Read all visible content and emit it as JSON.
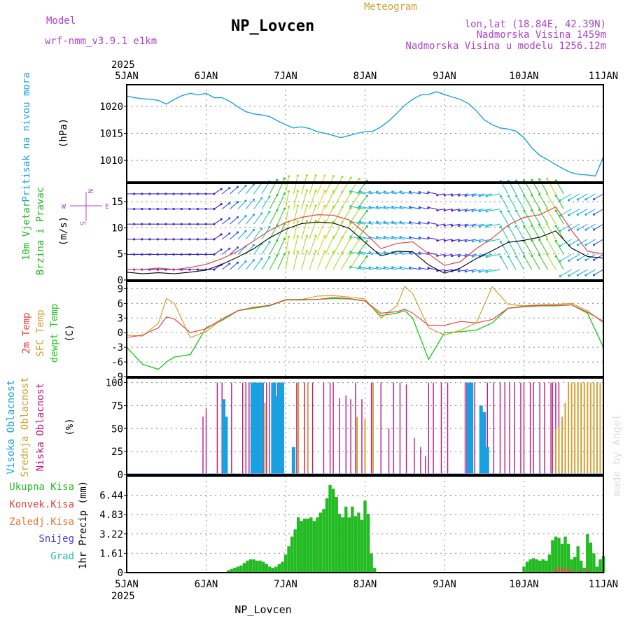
{
  "header": {
    "model_label": "Model",
    "model_name": "wrf-nmm_v3.9.1 e1km",
    "station": "NP_Lovcen",
    "meteogram": "Meteogram",
    "coords": "lon,lat (18.84E, 42.39N)",
    "altitude": "Nadmorska Visina 1459m",
    "model_altitude": "Nadmorska Visina u modelu 1256.12m",
    "credit": "made by Angel",
    "footer_station": "NP_Lovcen"
  },
  "colors": {
    "pressure": "#1aa3e8",
    "wind_label": "#22bb22",
    "t2m": "#ee4444",
    "tsfc": "#d4a030",
    "dewpt": "#22cc22",
    "high_cloud": "#18a0e0",
    "mid_cloud": "#d4a030",
    "low_cloud": "#c01880",
    "precip_total": "#22bb22",
    "precip_conv": "#ee4444",
    "snow": "#4444dd",
    "compass": "#aa44cc"
  },
  "time_axis": {
    "year": "2025",
    "days": [
      "5JAN",
      "6JAN",
      "7JAN",
      "8JAN",
      "9JAN",
      "10JAN",
      "11JAN"
    ]
  },
  "panels": {
    "pressure": {
      "label": "Pritisak na nivou mora",
      "unit": "(hPa)",
      "ticks": [
        "1010",
        "1015",
        "1020"
      ]
    },
    "wind": {
      "label1": "10m Vjetar",
      "label2": "Brzina i Pravac",
      "unit": "(m/s)",
      "ticks": [
        "0",
        "5",
        "10",
        "15"
      ],
      "compass": {
        "west": "W",
        "east": "E",
        "north": "N",
        "south": "S"
      }
    },
    "temperature": {
      "label1": "2m Temp",
      "label2": "SFC Temp",
      "label3": "dewpt Temp",
      "unit": "(C)",
      "ticks": [
        "-9",
        "-6",
        "-3",
        "0",
        "3",
        "6",
        "9"
      ]
    },
    "cloud": {
      "label1": "Visoka Oblacnost",
      "label2": "Srednja Oblacnost",
      "label3": "Niska Oblacnost",
      "unit": "(%)",
      "ticks": [
        "0",
        "25",
        "50",
        "75",
        "100"
      ]
    },
    "precip": {
      "unit": "1hr Precip (mm)",
      "ticks": [
        "0",
        "1.61",
        "3.22",
        "4.83",
        "6.44"
      ],
      "legend": [
        "Ukupna Kisa",
        "Konvek.Kisa",
        "Zaledj.Kisa",
        "Snijeg",
        "Grad"
      ]
    }
  },
  "chart_data": [
    {
      "type": "line",
      "title": "Pritisak na nivou mora",
      "ylabel": "(hPa)",
      "ylim": [
        1006,
        1024
      ],
      "x_units": "days since 5JAN 00UTC",
      "series": [
        {
          "name": "Pritisak na nivou mora",
          "x": [
            0,
            0.1,
            0.2,
            0.3,
            0.4,
            0.5,
            0.6,
            0.7,
            0.8,
            0.9,
            1.0,
            1.1,
            1.2,
            1.3,
            1.4,
            1.5,
            1.6,
            1.7,
            1.8,
            1.9,
            2.0,
            2.1,
            2.2,
            2.3,
            2.4,
            2.5,
            2.6,
            2.7,
            2.8,
            2.9,
            3.0,
            3.1,
            3.2,
            3.3,
            3.4,
            3.5,
            3.6,
            3.7,
            3.8,
            3.9,
            4.0,
            4.1,
            4.2,
            4.3,
            4.4,
            4.5,
            4.6,
            4.7,
            4.8,
            4.9,
            5.0,
            5.1,
            5.2,
            5.3,
            5.4,
            5.5,
            5.6,
            5.7,
            5.8,
            5.9,
            6.0
          ],
          "values": [
            1021.9,
            1021.6,
            1021.4,
            1021.3,
            1021.1,
            1020.4,
            1021.3,
            1022.0,
            1022.4,
            1022.1,
            1022.4,
            1021.6,
            1021.6,
            1020.9,
            1019.9,
            1019.0,
            1018.6,
            1018.4,
            1018.1,
            1017.3,
            1016.6,
            1016.0,
            1016.2,
            1015.9,
            1015.3,
            1015.0,
            1014.6,
            1014.2,
            1014.6,
            1015.0,
            1015.3,
            1015.4,
            1016.2,
            1017.3,
            1018.7,
            1020.2,
            1021.3,
            1022.1,
            1022.2,
            1022.7,
            1022.2,
            1021.7,
            1021.3,
            1020.5,
            1019.2,
            1017.5,
            1016.6,
            1016.0,
            1015.8,
            1015.4,
            1014.2,
            1012.3,
            1010.9,
            1010.1,
            1009.2,
            1008.4,
            1007.7,
            1007.4,
            1007.3,
            1007.1,
            1010.7
          ]
        }
      ]
    },
    {
      "type": "line",
      "title": "10m Vjetar Brzina i Pravac",
      "ylabel": "(m/s)",
      "ylim": [
        0,
        18
      ],
      "x_units": "days since 5JAN 00UTC",
      "series": [
        {
          "name": "mean",
          "x": [
            0,
            0.2,
            0.4,
            0.6,
            0.8,
            1.0,
            1.2,
            1.4,
            1.6,
            1.8,
            2.0,
            2.2,
            2.4,
            2.6,
            2.8,
            3.0,
            3.2,
            3.4,
            3.6,
            3.8,
            4.0,
            4.2,
            4.4,
            4.6,
            4.8,
            5.0,
            5.2,
            5.4,
            5.6,
            5.8,
            6.0
          ],
          "values": [
            1.5,
            1.2,
            1.4,
            1.2,
            1.5,
            1.9,
            3.0,
            4.4,
            6.0,
            8.1,
            9.7,
            10.8,
            11.1,
            10.9,
            9.9,
            7.2,
            4.6,
            5.5,
            5.4,
            2.9,
            1.3,
            2.3,
            4.1,
            5.6,
            7.2,
            7.6,
            8.2,
            9.4,
            6.1,
            4.5,
            4.2
          ]
        },
        {
          "name": "gust",
          "x": [
            0,
            0.2,
            0.4,
            0.6,
            0.8,
            1.0,
            1.2,
            1.4,
            1.6,
            1.8,
            2.0,
            2.2,
            2.4,
            2.6,
            2.8,
            3.0,
            3.2,
            3.4,
            3.6,
            3.8,
            4.0,
            4.2,
            4.4,
            4.6,
            4.8,
            5.0,
            5.2,
            5.4,
            5.6,
            5.8,
            6.0
          ],
          "values": [
            2.0,
            2.0,
            2.3,
            2.0,
            2.4,
            3.0,
            4.1,
            5.5,
            7.5,
            9.5,
            11.0,
            12.0,
            12.5,
            12.4,
            11.5,
            9.0,
            6.0,
            7.0,
            7.3,
            5.0,
            2.8,
            3.5,
            6.0,
            8.0,
            10.5,
            12.0,
            12.5,
            14.0,
            9.5,
            5.5,
            5.0
          ]
        }
      ]
    },
    {
      "type": "line",
      "title": "2m Temp / SFC Temp / dewpt Temp",
      "ylabel": "(C)",
      "ylim": [
        -9,
        9
      ],
      "x_units": "days since 5JAN 00UTC",
      "series": [
        {
          "name": "2m Temp",
          "x": [
            0,
            0.2,
            0.4,
            0.5,
            0.6,
            0.8,
            1.0,
            1.2,
            1.4,
            1.6,
            1.8,
            2.0,
            2.2,
            2.4,
            2.6,
            2.8,
            3.0,
            3.2,
            3.4,
            3.5,
            3.6,
            3.8,
            4.0,
            4.2,
            4.4,
            4.6,
            4.8,
            5.0,
            5.2,
            5.4,
            5.6,
            5.8,
            6.0
          ],
          "values": [
            -1.0,
            -0.5,
            1.0,
            3.2,
            2.8,
            0.0,
            0.8,
            2.8,
            4.5,
            5.2,
            5.6,
            6.7,
            6.8,
            6.8,
            7.2,
            7.0,
            6.5,
            4.0,
            4.3,
            4.8,
            4.0,
            1.5,
            1.5,
            2.3,
            2.0,
            2.7,
            5.0,
            5.4,
            5.6,
            5.6,
            5.7,
            4.2,
            2.3
          ]
        },
        {
          "name": "SFC Temp",
          "x": [
            0,
            0.2,
            0.4,
            0.5,
            0.6,
            0.8,
            1.0,
            1.2,
            1.4,
            1.6,
            1.8,
            2.0,
            2.2,
            2.4,
            2.6,
            2.8,
            3.0,
            3.2,
            3.4,
            3.5,
            3.6,
            3.8,
            4.0,
            4.2,
            4.4,
            4.6,
            4.8,
            5.0,
            5.2,
            5.4,
            5.6,
            5.8,
            6.0
          ],
          "values": [
            -0.5,
            -0.7,
            2.0,
            7.0,
            6.0,
            -1.0,
            0.2,
            2.8,
            4.5,
            5.2,
            5.6,
            6.8,
            6.8,
            7.5,
            7.6,
            7.3,
            6.9,
            3.0,
            5.5,
            9.5,
            8.0,
            1.0,
            -0.5,
            0.5,
            2.0,
            9.4,
            5.8,
            5.5,
            5.7,
            5.8,
            6.0,
            4.5,
            2.0
          ]
        },
        {
          "name": "dewpt Temp",
          "x": [
            0,
            0.2,
            0.4,
            0.5,
            0.6,
            0.8,
            1.0,
            1.2,
            1.4,
            1.6,
            1.8,
            2.0,
            2.2,
            2.4,
            2.6,
            2.8,
            3.0,
            3.2,
            3.4,
            3.5,
            3.6,
            3.8,
            4.0,
            4.2,
            4.4,
            4.6,
            4.8,
            5.0,
            5.2,
            5.4,
            5.6,
            5.8,
            6.0
          ],
          "values": [
            -3.0,
            -6.5,
            -7.5,
            -6.0,
            -5.0,
            -4.5,
            1.0,
            2.5,
            4.5,
            5.0,
            5.5,
            6.7,
            6.7,
            6.8,
            7.0,
            6.9,
            6.5,
            3.5,
            4.0,
            4.5,
            3.0,
            -5.5,
            0.0,
            0.2,
            0.5,
            2.0,
            5.0,
            5.3,
            5.5,
            5.5,
            5.7,
            4.0,
            -3.0
          ]
        }
      ]
    },
    {
      "type": "bar",
      "title": "Visoka / Srednja / Niska Oblacnost",
      "ylabel": "(%)",
      "ylim": [
        0,
        100
      ],
      "x_units": "days since 5JAN 00UTC",
      "series": [
        {
          "name": "Visoka Oblacnost",
          "x": [
            1.22,
            1.25,
            1.58,
            1.6,
            1.62,
            1.64,
            1.68,
            1.7,
            1.84,
            1.86,
            1.88,
            1.92,
            1.94,
            1.96,
            2.1,
            4.3,
            4.32,
            4.34,
            4.46,
            4.5,
            4.54
          ],
          "values": [
            82,
            63,
            100,
            100,
            100,
            100,
            100,
            100,
            100,
            100,
            85,
            100,
            100,
            100,
            30,
            100,
            100,
            100,
            75,
            68,
            30
          ]
        },
        {
          "name": "Srednja Oblacnost",
          "x": [
            1.74,
            2.16,
            2.28,
            2.9,
            3.0,
            3.1,
            5.4,
            5.44,
            5.48,
            5.52,
            5.56,
            5.6,
            5.64,
            5.68,
            5.72,
            5.76,
            5.8,
            5.84,
            5.88,
            5.92,
            5.96
          ],
          "values": [
            78,
            100,
            100,
            63,
            60,
            100,
            50,
            52,
            63,
            78,
            100,
            100,
            100,
            100,
            100,
            100,
            100,
            100,
            100,
            100,
            100
          ]
        },
        {
          "name": "Niska Oblacnost",
          "x": [
            0.96,
            1.0,
            1.14,
            1.2,
            1.32,
            1.46,
            1.5,
            1.54,
            1.72,
            1.76,
            1.8,
            1.9,
            1.92,
            2.14,
            2.24,
            2.34,
            2.48,
            2.56,
            2.6,
            2.68,
            2.76,
            2.82,
            2.88,
            2.96,
            3.08,
            3.2,
            3.3,
            3.36,
            3.44,
            3.52,
            3.62,
            3.7,
            3.76,
            3.8,
            3.86,
            3.96,
            4.04,
            4.26,
            4.28,
            4.38,
            4.54,
            4.62,
            4.7,
            4.76,
            4.82,
            4.88,
            4.96,
            5.0,
            5.08,
            5.12,
            5.2,
            5.26,
            5.34,
            5.36,
            5.4,
            5.44
          ],
          "values": [
            63,
            72,
            100,
            100,
            100,
            100,
            100,
            100,
            100,
            100,
            100,
            100,
            100,
            100,
            100,
            100,
            100,
            100,
            100,
            83,
            86,
            82,
            100,
            82,
            100,
            100,
            50,
            100,
            100,
            98,
            40,
            30,
            20,
            100,
            100,
            100,
            100,
            100,
            100,
            100,
            100,
            100,
            100,
            100,
            100,
            100,
            100,
            100,
            100,
            100,
            100,
            100,
            100,
            100,
            100,
            100
          ]
        }
      ]
    },
    {
      "type": "bar",
      "title": "1hr Precip",
      "ylabel": "1hr Precip (mm)",
      "ylim": [
        0,
        8.05
      ],
      "x_units": "days since 5JAN 00UTC",
      "series": [
        {
          "name": "Ukupna Kisa",
          "x": [
            1.28,
            1.32,
            1.36,
            1.4,
            1.44,
            1.48,
            1.52,
            1.56,
            1.6,
            1.64,
            1.68,
            1.72,
            1.76,
            1.8,
            1.84,
            1.88,
            1.92,
            1.96,
            2.0,
            2.04,
            2.08,
            2.12,
            2.16,
            2.2,
            2.24,
            2.28,
            2.32,
            2.36,
            2.4,
            2.44,
            2.48,
            2.52,
            2.56,
            2.6,
            2.64,
            2.68,
            2.72,
            2.76,
            2.8,
            2.84,
            2.88,
            2.92,
            2.96,
            3.0,
            3.04,
            3.08,
            3.12,
            5.0,
            5.04,
            5.08,
            5.12,
            5.16,
            5.2,
            5.24,
            5.28,
            5.32,
            5.36,
            5.4,
            5.44,
            5.48,
            5.52,
            5.56,
            5.6,
            5.64,
            5.68,
            5.72,
            5.76,
            5.8,
            5.84,
            5.88,
            5.92,
            5.96,
            6.0
          ],
          "values": [
            0.2,
            0.3,
            0.4,
            0.5,
            0.6,
            0.8,
            1.0,
            1.1,
            1.1,
            1.0,
            1.0,
            0.9,
            0.7,
            0.5,
            0.4,
            0.5,
            0.7,
            0.9,
            1.5,
            2.2,
            3.0,
            3.6,
            4.6,
            4.3,
            4.5,
            4.5,
            4.6,
            4.3,
            4.6,
            5.0,
            5.3,
            6.2,
            7.3,
            7.0,
            6.3,
            4.9,
            4.6,
            5.5,
            4.6,
            5.5,
            4.7,
            5.0,
            4.4,
            6.0,
            4.9,
            1.6,
            0.4,
            0.5,
            0.9,
            1.1,
            1.2,
            1.1,
            1.0,
            1.1,
            1.0,
            1.5,
            2.7,
            3.0,
            2.9,
            2.4,
            3.0,
            2.4,
            1.1,
            1.3,
            2.2,
            1.0,
            0.4,
            3.2,
            2.5,
            1.6,
            0.5,
            1.1,
            1.4
          ]
        },
        {
          "name": "Konvek.Kisa",
          "x": [
            5.4,
            5.44,
            5.48,
            5.52,
            5.56,
            5.6,
            5.72,
            5.8
          ],
          "values": [
            0.4,
            0.5,
            0.4,
            0.4,
            0.3,
            0.3,
            0.2,
            0.3
          ]
        }
      ]
    }
  ]
}
